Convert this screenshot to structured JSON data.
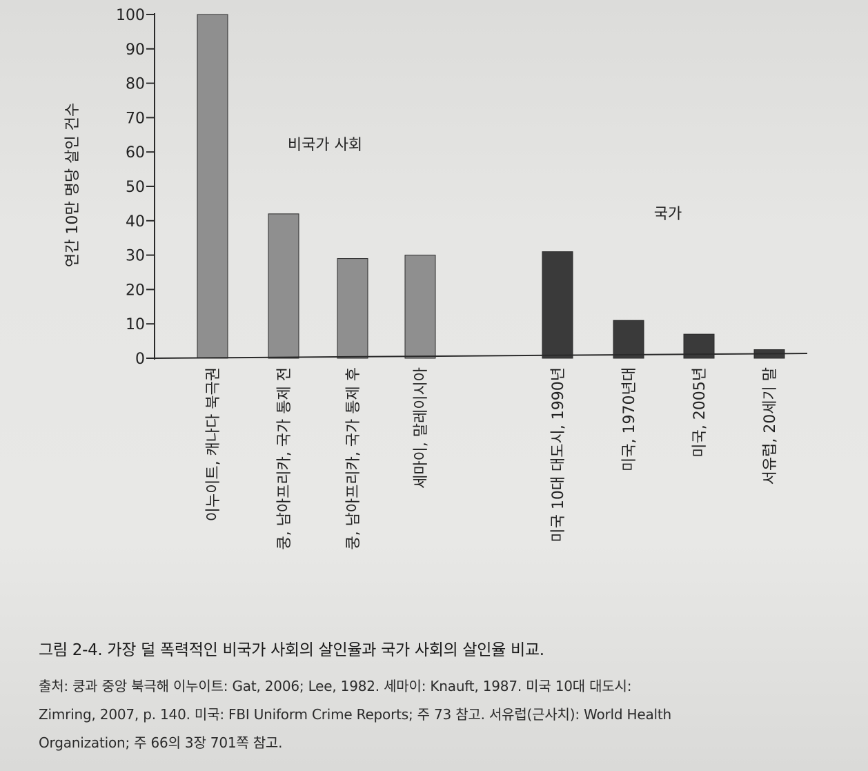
{
  "chart_data": {
    "type": "bar",
    "ylabel": "연간 10만 명당 살인 건수",
    "ylim": [
      0,
      100
    ],
    "yticks": [
      0,
      10,
      20,
      30,
      40,
      50,
      60,
      70,
      80,
      90,
      100
    ],
    "categories": [
      "이누이트, 캐나다 북극권",
      "쿵, 남아프리카, 국가 통제 전",
      "쿵, 남아프리카, 국가 통제 후",
      "세마이, 말레이시아",
      "미국 10대 대도시, 1990년",
      "미국, 1970년대",
      "미국, 2005년",
      "서유럽, 20세기 말"
    ],
    "values": [
      100,
      42,
      29,
      30,
      31,
      11,
      7,
      2.5
    ],
    "groups": [
      {
        "name": "비국가 사회",
        "color": "#8f8f8f",
        "members": [
          0,
          1,
          2,
          3
        ]
      },
      {
        "name": "국가",
        "color": "#3a3a3a",
        "members": [
          4,
          5,
          6,
          7
        ]
      }
    ],
    "grid": false,
    "legend": "none"
  },
  "caption": "그림 2-4. 가장 덜 폭력적인 비국가 사회의 살인율과 국가 사회의 살인율 비교.",
  "source_lines": [
    "출처: 쿵과 중앙 북극해 이누이트: Gat, 2006; Lee, 1982. 세마이: Knauft, 1987. 미국 10대 대도시:",
    "Zimring, 2007, p. 140. 미국: FBI Uniform Crime Reports; 주 73 참고. 서유럽(근사치): World Health",
    "Organization; 주 66의 3장 701쪽 참고."
  ]
}
